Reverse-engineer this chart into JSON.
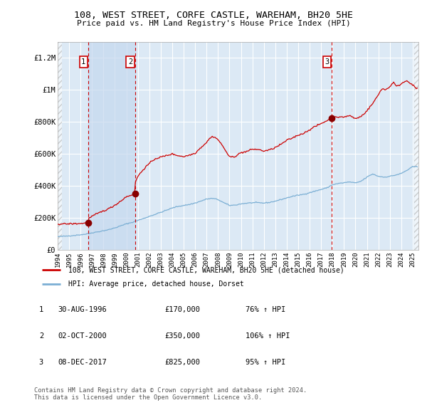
{
  "title": "108, WEST STREET, CORFE CASTLE, WAREHAM, BH20 5HE",
  "subtitle": "Price paid vs. HM Land Registry's House Price Index (HPI)",
  "ylim": [
    0,
    1300000
  ],
  "xlim_start": 1994.0,
  "xlim_end": 2025.5,
  "background_color": "#ffffff",
  "plot_bg_color": "#dce9f5",
  "grid_color": "#ffffff",
  "red_line_color": "#cc0000",
  "blue_line_color": "#7bafd4",
  "dashed_line_color": "#cc0000",
  "legend_label_red": "108, WEST STREET, CORFE CASTLE, WAREHAM, BH20 5HE (detached house)",
  "legend_label_blue": "HPI: Average price, detached house, Dorset",
  "footer_text": "Contains HM Land Registry data © Crown copyright and database right 2024.\nThis data is licensed under the Open Government Licence v3.0.",
  "sales": [
    {
      "num": 1,
      "date_label": "30-AUG-1996",
      "price": 170000,
      "price_str": "£170,000",
      "pct": "76%",
      "date_x": 1996.66
    },
    {
      "num": 2,
      "date_label": "02-OCT-2000",
      "price": 350000,
      "price_str": "£350,000",
      "pct": "106%",
      "date_x": 2000.75
    },
    {
      "num": 3,
      "date_label": "08-DEC-2017",
      "price": 825000,
      "price_str": "£825,000",
      "pct": "95%",
      "date_x": 2017.92
    }
  ],
  "yticks": [
    0,
    200000,
    400000,
    600000,
    800000,
    1000000,
    1200000
  ],
  "ytick_labels": [
    "£0",
    "£200K",
    "£400K",
    "£600K",
    "£800K",
    "£1M",
    "£1.2M"
  ],
  "xticks": [
    1994,
    1995,
    1996,
    1997,
    1998,
    1999,
    2000,
    2001,
    2002,
    2003,
    2004,
    2005,
    2006,
    2007,
    2008,
    2009,
    2010,
    2011,
    2012,
    2013,
    2014,
    2015,
    2016,
    2017,
    2018,
    2019,
    2020,
    2021,
    2022,
    2023,
    2024,
    2025
  ],
  "hpi_years": [
    1994.0,
    1994.5,
    1995.0,
    1995.5,
    1996.0,
    1996.5,
    1997.0,
    1997.5,
    1998.0,
    1998.5,
    1999.0,
    1999.5,
    2000.0,
    2000.5,
    2001.0,
    2001.5,
    2002.0,
    2002.5,
    2003.0,
    2003.5,
    2004.0,
    2004.5,
    2005.0,
    2005.5,
    2006.0,
    2006.5,
    2007.0,
    2007.5,
    2008.0,
    2008.5,
    2009.0,
    2009.5,
    2010.0,
    2010.5,
    2011.0,
    2011.5,
    2012.0,
    2012.5,
    2013.0,
    2013.5,
    2014.0,
    2014.5,
    2015.0,
    2015.5,
    2016.0,
    2016.5,
    2017.0,
    2017.5,
    2018.0,
    2018.5,
    2019.0,
    2019.5,
    2020.0,
    2020.5,
    2021.0,
    2021.5,
    2022.0,
    2022.5,
    2023.0,
    2023.5,
    2024.0,
    2024.5,
    2025.0
  ],
  "hpi_values": [
    83000,
    85000,
    88000,
    91000,
    95000,
    99000,
    107000,
    113000,
    120000,
    127000,
    138000,
    150000,
    163000,
    172000,
    185000,
    196000,
    210000,
    222000,
    235000,
    248000,
    262000,
    272000,
    278000,
    284000,
    293000,
    305000,
    318000,
    322000,
    315000,
    295000,
    278000,
    280000,
    288000,
    292000,
    295000,
    295000,
    293000,
    297000,
    305000,
    315000,
    325000,
    335000,
    342000,
    348000,
    358000,
    368000,
    378000,
    388000,
    408000,
    415000,
    420000,
    425000,
    418000,
    430000,
    455000,
    475000,
    460000,
    455000,
    460000,
    468000,
    478000,
    498000,
    520000
  ],
  "red_years": [
    1994.0,
    1994.5,
    1995.0,
    1995.5,
    1996.0,
    1996.66,
    1996.67,
    1997.0,
    1997.5,
    1998.0,
    1998.5,
    1999.0,
    1999.5,
    2000.0,
    2000.5,
    2000.75,
    2000.76,
    2001.0,
    2001.5,
    2002.0,
    2002.5,
    2003.0,
    2003.5,
    2004.0,
    2004.5,
    2005.0,
    2005.5,
    2006.0,
    2006.5,
    2007.0,
    2007.3,
    2007.6,
    2008.0,
    2008.5,
    2009.0,
    2009.5,
    2010.0,
    2010.5,
    2011.0,
    2011.5,
    2012.0,
    2012.5,
    2013.0,
    2013.5,
    2014.0,
    2014.5,
    2015.0,
    2015.5,
    2016.0,
    2016.5,
    2017.0,
    2017.5,
    2017.92,
    2017.93,
    2018.0,
    2018.3,
    2018.6,
    2019.0,
    2019.5,
    2020.0,
    2020.5,
    2021.0,
    2021.5,
    2022.0,
    2022.3,
    2022.6,
    2023.0,
    2023.3,
    2023.6,
    2024.0,
    2024.5,
    2025.0,
    2025.3
  ],
  "red_values": [
    162000,
    162500,
    163000,
    164000,
    165000,
    170000,
    195000,
    210000,
    228000,
    244000,
    259000,
    280000,
    305000,
    333000,
    345000,
    350000,
    420000,
    460000,
    505000,
    540000,
    570000,
    580000,
    590000,
    600000,
    590000,
    583000,
    593000,
    605000,
    640000,
    672000,
    700000,
    710000,
    690000,
    640000,
    580000,
    585000,
    608000,
    615000,
    630000,
    628000,
    618000,
    625000,
    640000,
    660000,
    685000,
    700000,
    718000,
    730000,
    752000,
    772000,
    790000,
    808000,
    825000,
    830000,
    828000,
    835000,
    828000,
    832000,
    840000,
    820000,
    835000,
    870000,
    915000,
    970000,
    1010000,
    1000000,
    1020000,
    1050000,
    1020000,
    1040000,
    1060000,
    1030000,
    1010000
  ]
}
